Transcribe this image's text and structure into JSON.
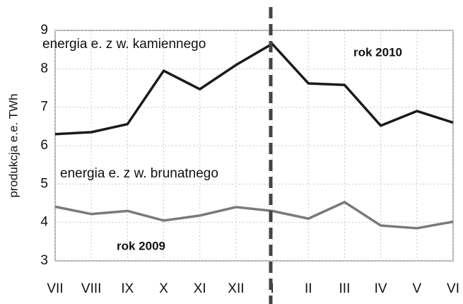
{
  "chart_data": {
    "type": "line",
    "y_label": "produkcja e.e. TWh",
    "categories": [
      "VII",
      "VIII",
      "IX",
      "X",
      "XI",
      "XII",
      "I",
      "II",
      "III",
      "IV",
      "V",
      "VI"
    ],
    "series": [
      {
        "name": "energia e. z w. kamiennego",
        "color": "#1a1a1a",
        "values": [
          6.3,
          6.35,
          6.56,
          7.95,
          7.47,
          8.1,
          8.65,
          7.62,
          7.58,
          6.52,
          6.9,
          6.6
        ]
      },
      {
        "name": "energia e. z w. brunatnego",
        "color": "#7a7a7a",
        "values": [
          4.41,
          4.22,
          4.3,
          4.05,
          4.18,
          4.4,
          4.3,
          4.1,
          4.53,
          3.92,
          3.85,
          4.02
        ]
      }
    ],
    "annotations": [
      "rok 2010",
      "rok 2009"
    ],
    "ylim": [
      3,
      9
    ],
    "yticks": [
      3,
      4,
      5,
      6,
      7,
      8,
      9
    ],
    "grid": true
  }
}
